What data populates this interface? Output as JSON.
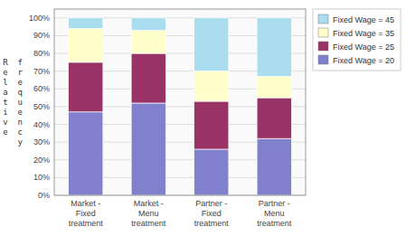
{
  "chart_data": {
    "type": "bar",
    "stacked": true,
    "categories": [
      "Market -\nFixed\ntreatment",
      "Market -\nMenu\ntreatment",
      "Partner -\nFixed\ntreatment",
      "Partner -\nMenu\ntreatment"
    ],
    "series": [
      {
        "name": "Fixed Wage = 20",
        "color": "#8080CC",
        "values": [
          47,
          52,
          26,
          32
        ]
      },
      {
        "name": "Fixed Wage = 25",
        "color": "#993366",
        "values": [
          28,
          28,
          27,
          23
        ]
      },
      {
        "name": "Fixed Wage = 35",
        "color": "#FFFFCC",
        "values": [
          19,
          13,
          17,
          12
        ]
      },
      {
        "name": "Fixed Wage = 45",
        "color": "#AADDEE",
        "values": [
          6,
          7,
          30,
          33
        ]
      }
    ],
    "ylabel": "R  f\ne  r\nl  e\na  q\nt  u\ni  e\nv  n\ne  c\n   y",
    "ylim": [
      0,
      105
    ],
    "yticks": [
      {
        "value": 0,
        "label": "0%"
      },
      {
        "value": 10,
        "label": "10%"
      },
      {
        "value": 20,
        "label": "20%"
      },
      {
        "value": 30,
        "label": "30%"
      },
      {
        "value": 40,
        "label": "40%"
      },
      {
        "value": 50,
        "label": "50%"
      },
      {
        "value": 60,
        "label": "60%"
      },
      {
        "value": 70,
        "label": "70%"
      },
      {
        "value": 80,
        "label": "80%"
      },
      {
        "value": 90,
        "label": "90%"
      },
      {
        "value": 100,
        "label": "100%"
      }
    ],
    "grid": true,
    "legend": "right"
  }
}
